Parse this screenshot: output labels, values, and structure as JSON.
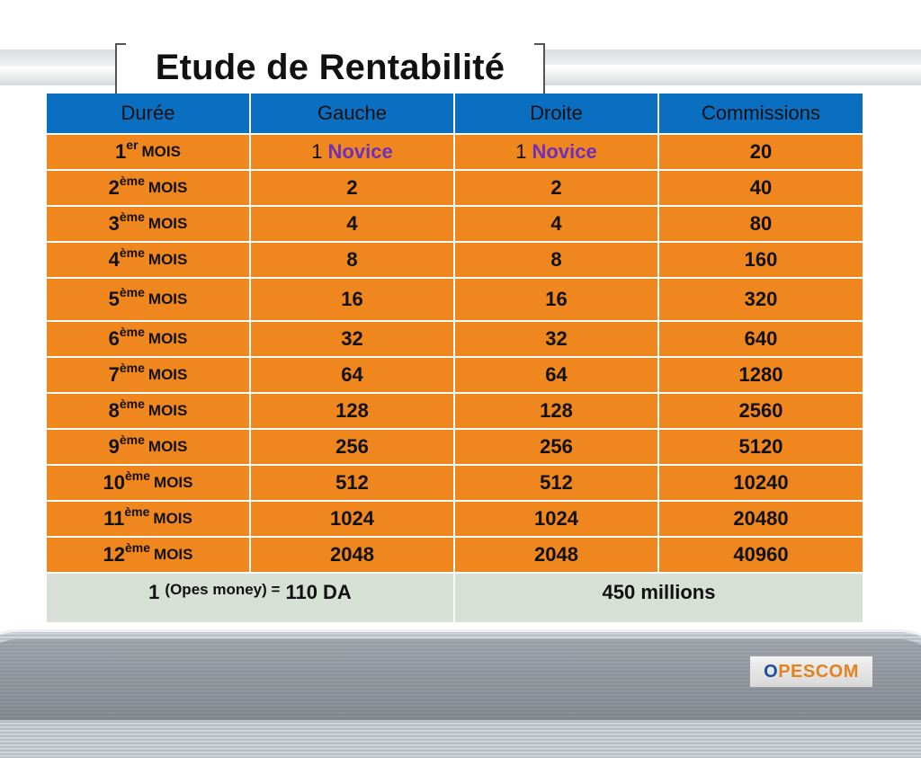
{
  "title": "Etude de Rentabilité",
  "header": [
    "Durée",
    "Gauche",
    "Droite",
    "Commissions"
  ],
  "rows": [
    {
      "n": "1",
      "sup": "er",
      "mois": "MOIS",
      "gauche_num": "1",
      "gauche_word": "Novice",
      "droite_num": "1",
      "droite_word": "Novice",
      "commissions": "20"
    },
    {
      "n": "2",
      "sup": "ème",
      "mois": "MOIS",
      "gauche": "2",
      "droite": "2",
      "commissions": "40"
    },
    {
      "n": "3",
      "sup": "ème",
      "mois": "MOIS",
      "gauche": "4",
      "droite": "4",
      "commissions": "80"
    },
    {
      "n": "4",
      "sup": "ème",
      "mois": "MOIS",
      "gauche": "8",
      "droite": "8",
      "commissions": "160"
    },
    {
      "n": "5",
      "sup": "ème",
      "mois": "MOIS",
      "gauche": "16",
      "droite": "16",
      "commissions": "320"
    },
    {
      "n": "6",
      "sup": "ème",
      "mois": "MOIS",
      "gauche": "32",
      "droite": "32",
      "commissions": "640"
    },
    {
      "n": "7",
      "sup": "ème",
      "mois": "MOIS",
      "gauche": "64",
      "droite": "64",
      "commissions": "1280"
    },
    {
      "n": "8",
      "sup": "ème",
      "mois": "MOIS",
      "gauche": "128",
      "droite": "128",
      "commissions": "2560"
    },
    {
      "n": "9",
      "sup": "ème",
      "mois": "MOIS",
      "gauche": "256",
      "droite": "256",
      "commissions": "5120"
    },
    {
      "n": "10",
      "sup": "ème",
      "mois": "MOIS",
      "gauche": "512",
      "droite": "512",
      "commissions": "10240"
    },
    {
      "n": "11",
      "sup": "ème",
      "mois": "MOIS",
      "gauche": "1024",
      "droite": "1024",
      "commissions": "20480"
    },
    {
      "n": "12",
      "sup": "ème",
      "mois": "MOIS",
      "gauche": "2048",
      "droite": "2048",
      "commissions": "40960"
    }
  ],
  "footer": {
    "left_num": "1",
    "left_mid": "(Opes money) =",
    "left_value": "110 DA",
    "right": "450 millions"
  },
  "logo": {
    "first": "O",
    "rest": "PESCOM"
  },
  "colors": {
    "header_bg": "#0b6fc1",
    "row_bg": "#f0861e",
    "footer_bg": "#d6e0d4",
    "novice": "#6f2fb8",
    "logo_orange": "#e2831f",
    "logo_blue": "#1c4f9c"
  }
}
